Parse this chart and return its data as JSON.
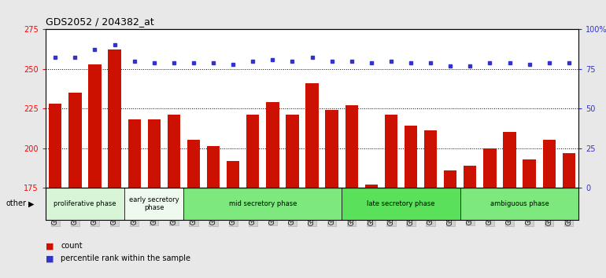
{
  "title": "GDS2052 / 204382_at",
  "samples": [
    "GSM109814",
    "GSM109815",
    "GSM109816",
    "GSM109817",
    "GSM109820",
    "GSM109821",
    "GSM109822",
    "GSM109824",
    "GSM109825",
    "GSM109826",
    "GSM109827",
    "GSM109828",
    "GSM109829",
    "GSM109830",
    "GSM109831",
    "GSM109834",
    "GSM109835",
    "GSM109836",
    "GSM109837",
    "GSM109838",
    "GSM109839",
    "GSM109818",
    "GSM109819",
    "GSM109823",
    "GSM109832",
    "GSM109833",
    "GSM109840"
  ],
  "counts": [
    228,
    235,
    253,
    262,
    218,
    218,
    221,
    205,
    201,
    192,
    221,
    229,
    221,
    241,
    224,
    227,
    177,
    221,
    214,
    211,
    186,
    189,
    200,
    210,
    193,
    205,
    197
  ],
  "percentiles": [
    82,
    82,
    87,
    90,
    80,
    79,
    79,
    79,
    79,
    78,
    80,
    81,
    80,
    82,
    80,
    80,
    79,
    80,
    79,
    79,
    77,
    77,
    79,
    79,
    78,
    79,
    79
  ],
  "bar_color": "#cc1100",
  "dot_color": "#3333cc",
  "ylim_left": [
    175,
    275
  ],
  "ylim_right": [
    0,
    100
  ],
  "yticks_left": [
    175,
    200,
    225,
    250,
    275
  ],
  "yticks_right": [
    0,
    25,
    50,
    75,
    100
  ],
  "phases": [
    {
      "label": "proliferative phase",
      "start": 0,
      "end": 4,
      "color": "#d8f5d8"
    },
    {
      "label": "early secretory\nphase",
      "start": 4,
      "end": 7,
      "color": "#edfaed"
    },
    {
      "label": "mid secretory phase",
      "start": 7,
      "end": 15,
      "color": "#7de87d"
    },
    {
      "label": "late secretory phase",
      "start": 15,
      "end": 21,
      "color": "#5ae05a"
    },
    {
      "label": "ambiguous phase",
      "start": 21,
      "end": 27,
      "color": "#7de87d"
    }
  ],
  "other_label": "other",
  "legend_count_label": "count",
  "legend_pct_label": "percentile rank within the sample",
  "bg_color": "#e8e8e8",
  "plot_bg": "#ffffff",
  "tick_box_color": "#d0d0d0"
}
